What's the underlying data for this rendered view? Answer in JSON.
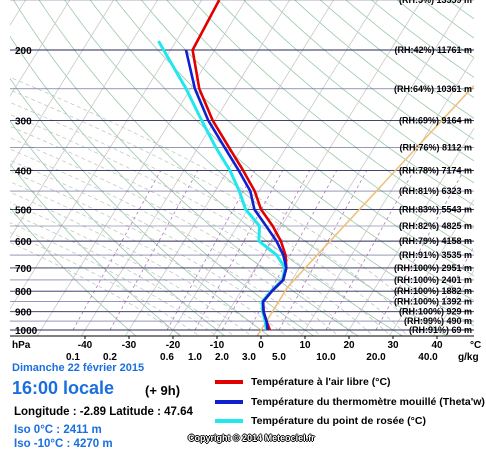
{
  "chart_data": {
    "type": "line",
    "pressure_ticks": [
      200,
      300,
      400,
      500,
      600,
      700,
      800,
      900,
      1000
    ],
    "pressure_unit": "hPa",
    "temp_ticks": [
      -40,
      -30,
      -20,
      -10,
      0,
      10,
      20,
      30,
      40
    ],
    "temp_unit": "°C",
    "mixing_ticks": [
      "0.1",
      "0.2",
      "0.6",
      "1.0",
      "2.0",
      "3.0",
      "5.0",
      "10.0",
      "20.0",
      "40.0"
    ],
    "mixing_unit": "g/kg",
    "rh_labels": [
      {
        "p": 150,
        "text": "(RH:5%) 13559 m"
      },
      {
        "p": 200,
        "text": "(RH:42%) 11761 m"
      },
      {
        "p": 250,
        "text": "(RH:64%) 10361 m"
      },
      {
        "p": 300,
        "text": "(RH:69%) 9164 m"
      },
      {
        "p": 350,
        "text": "(RH:76%) 8112 m"
      },
      {
        "p": 400,
        "text": "(RH:78%) 7174 m"
      },
      {
        "p": 450,
        "text": "(RH:81%) 6323 m"
      },
      {
        "p": 500,
        "text": "(RH:83%) 5543 m"
      },
      {
        "p": 550,
        "text": "(RH:82%) 4825 m"
      },
      {
        "p": 600,
        "text": "(RH:79%) 4158 m"
      },
      {
        "p": 650,
        "text": "(RH:91%) 3535 m"
      },
      {
        "p": 700,
        "text": "(RH:100%) 2951 m"
      },
      {
        "p": 750,
        "text": "(RH:100%) 2401 m"
      },
      {
        "p": 800,
        "text": "(RH:100%) 1882 m"
      },
      {
        "p": 850,
        "text": "(RH:100%) 1392 m"
      },
      {
        "p": 900,
        "text": "(RH:100%) 929 m"
      },
      {
        "p": 950,
        "text": "(RH:99%) 490 m"
      },
      {
        "p": 1000,
        "text": "(RH:91%) 69 m"
      }
    ],
    "series": [
      {
        "name": "Température à l'air libre (°C)",
        "color": "#e00000",
        "p": [
          150,
          200,
          250,
          300,
          350,
          400,
          450,
          500,
          550,
          600,
          650,
          700,
          750,
          800,
          850,
          900,
          950,
          1000
        ],
        "t": [
          -56,
          -55,
          -48,
          -40.5,
          -33,
          -26.5,
          -21,
          -17,
          -12,
          -8,
          -5,
          -3,
          -2,
          -3,
          -3.5,
          -2,
          0,
          2
        ]
      },
      {
        "name": "Température du thermomètre mouillé (Theta'w)",
        "color": "#1020d0",
        "p": [
          200,
          250,
          300,
          350,
          400,
          450,
          500,
          550,
          600,
          650,
          700,
          750,
          800,
          850,
          900,
          950,
          1000
        ],
        "t": [
          -56.5,
          -49,
          -41.5,
          -34,
          -27.5,
          -22,
          -18.5,
          -13.5,
          -9,
          -5.5,
          -3,
          -2,
          -3,
          -3.5,
          -2,
          0,
          1.5
        ]
      },
      {
        "name": "Température du point de rosée (°C)",
        "color": "#20e8ee",
        "p": [
          190,
          250,
          300,
          350,
          400,
          450,
          500,
          550,
          600,
          650,
          700,
          750,
          800,
          850,
          900,
          950,
          1000
        ],
        "t": [
          -64,
          -51,
          -43,
          -36,
          -29.5,
          -24.5,
          -20.5,
          -15,
          -13,
          -7,
          -3.3,
          -2.2,
          -3.2,
          -3.7,
          -2.2,
          -0.3,
          1.2
        ]
      }
    ],
    "iso_zero": {
      "p_min": 780,
      "t_at_pmax": 0
    }
  },
  "footer": {
    "date": "Dimanche 22 février 2015",
    "time": "16:00 locale",
    "forecast_offset": "(+ 9h)",
    "coords": "Longitude : -2.89   Latitude : 47.64",
    "iso0": "Iso 0°C : 2411 m",
    "iso10": "Iso -10°C : 4270 m",
    "copyright": "Copyright © 2014 Meteociel.fr"
  }
}
